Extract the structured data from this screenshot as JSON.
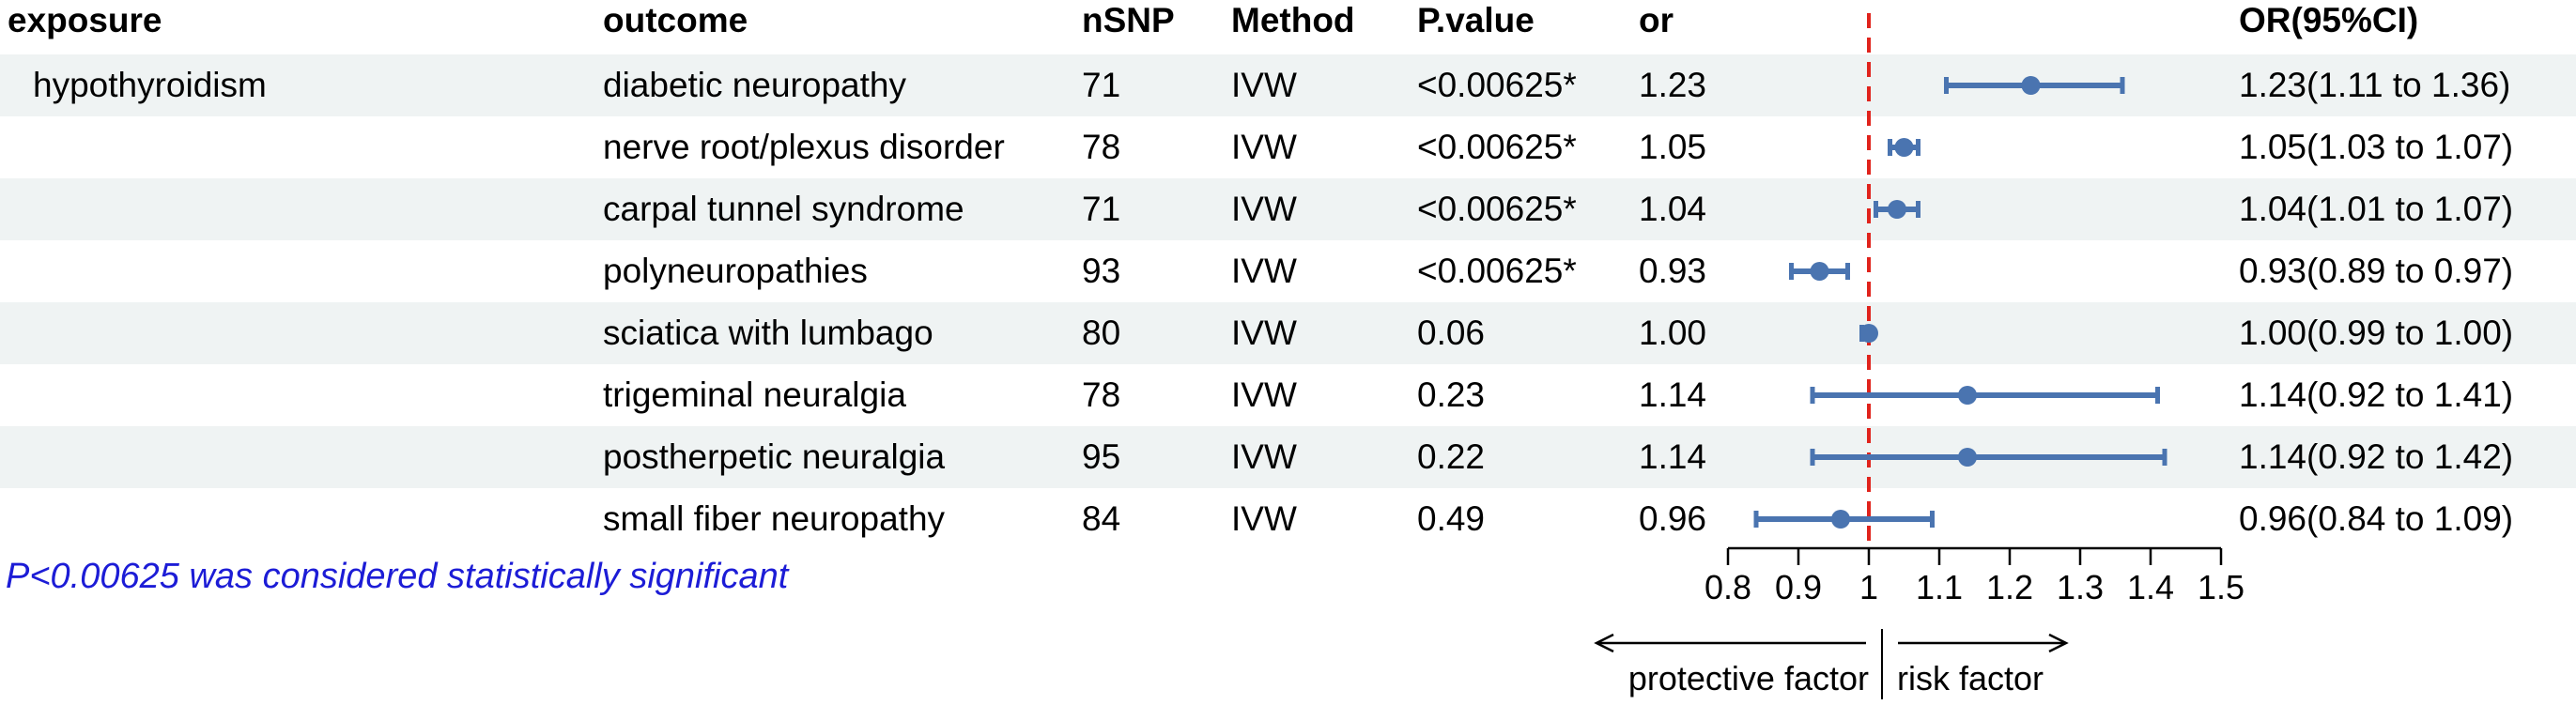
{
  "table": {
    "headers": {
      "exposure": "exposure",
      "outcome": "outcome",
      "nsnp": "nSNP",
      "method": "Method",
      "pvalue": "P.value",
      "or": "or",
      "ci": "OR(95%CI)"
    },
    "rows": [
      {
        "exposure": "hypothyroidism",
        "outcome": "diabetic neuropathy",
        "nsnp": "71",
        "method": "IVW",
        "pvalue": "<0.00625*",
        "or": "1.23",
        "ci": "1.23(1.11 to 1.36)"
      },
      {
        "exposure": "",
        "outcome": "nerve root/plexus disorder",
        "nsnp": "78",
        "method": "IVW",
        "pvalue": "<0.00625*",
        "or": "1.05",
        "ci": "1.05(1.03 to 1.07)"
      },
      {
        "exposure": "",
        "outcome": "carpal tunnel syndrome",
        "nsnp": "71",
        "method": "IVW",
        "pvalue": "<0.00625*",
        "or": "1.04",
        "ci": "1.04(1.01 to 1.07)"
      },
      {
        "exposure": "",
        "outcome": "polyneuropathies",
        "nsnp": "93",
        "method": "IVW",
        "pvalue": "<0.00625*",
        "or": "0.93",
        "ci": "0.93(0.89 to 0.97)"
      },
      {
        "exposure": "",
        "outcome": "sciatica with lumbago",
        "nsnp": "80",
        "method": "IVW",
        "pvalue": "0.06",
        "or": "1.00",
        "ci": "1.00(0.99 to 1.00)"
      },
      {
        "exposure": "",
        "outcome": "trigeminal neuralgia",
        "nsnp": "78",
        "method": "IVW",
        "pvalue": "0.23",
        "or": "1.14",
        "ci": "1.14(0.92 to 1.41)"
      },
      {
        "exposure": "",
        "outcome": "postherpetic neuralgia",
        "nsnp": "95",
        "method": "IVW",
        "pvalue": "0.22",
        "or": "1.14",
        "ci": "1.14(0.92 to 1.42)"
      },
      {
        "exposure": "",
        "outcome": "small fiber neuropathy",
        "nsnp": "84",
        "method": "IVW",
        "pvalue": "0.49",
        "or": "0.96",
        "ci": "0.96(0.84 to 1.09)"
      }
    ]
  },
  "note": "P<0.00625 was considered statistically significant",
  "chart_data": {
    "type": "scatter",
    "subtype": "forest-plot",
    "categories": [
      "diabetic neuropathy",
      "nerve root/plexus disorder",
      "carpal tunnel syndrome",
      "polyneuropathies",
      "sciatica with lumbago",
      "trigeminal neuralgia",
      "postherpetic neuralgia",
      "small fiber neuropathy"
    ],
    "series": [
      {
        "estimate": [
          1.23,
          1.05,
          1.04,
          0.93,
          1.0,
          1.14,
          1.14,
          0.96
        ],
        "lower": [
          1.11,
          1.03,
          1.01,
          0.89,
          0.99,
          0.92,
          0.92,
          0.84
        ],
        "upper": [
          1.36,
          1.07,
          1.07,
          0.97,
          1.0,
          1.41,
          1.42,
          1.09
        ]
      }
    ],
    "xlim": [
      0.8,
      1.5
    ],
    "xticks": [
      "0.8",
      "0.9",
      "1",
      "1.1",
      "1.2",
      "1.3",
      "1.4",
      "1.5"
    ],
    "reference_line": 1,
    "direction_labels": {
      "left": "protective factor",
      "right": "risk factor"
    },
    "colors": {
      "point": "#4a74b0",
      "reference": "#e0231c",
      "band": "#eff3f3",
      "note": "#1c1cd6"
    },
    "grid": false
  }
}
